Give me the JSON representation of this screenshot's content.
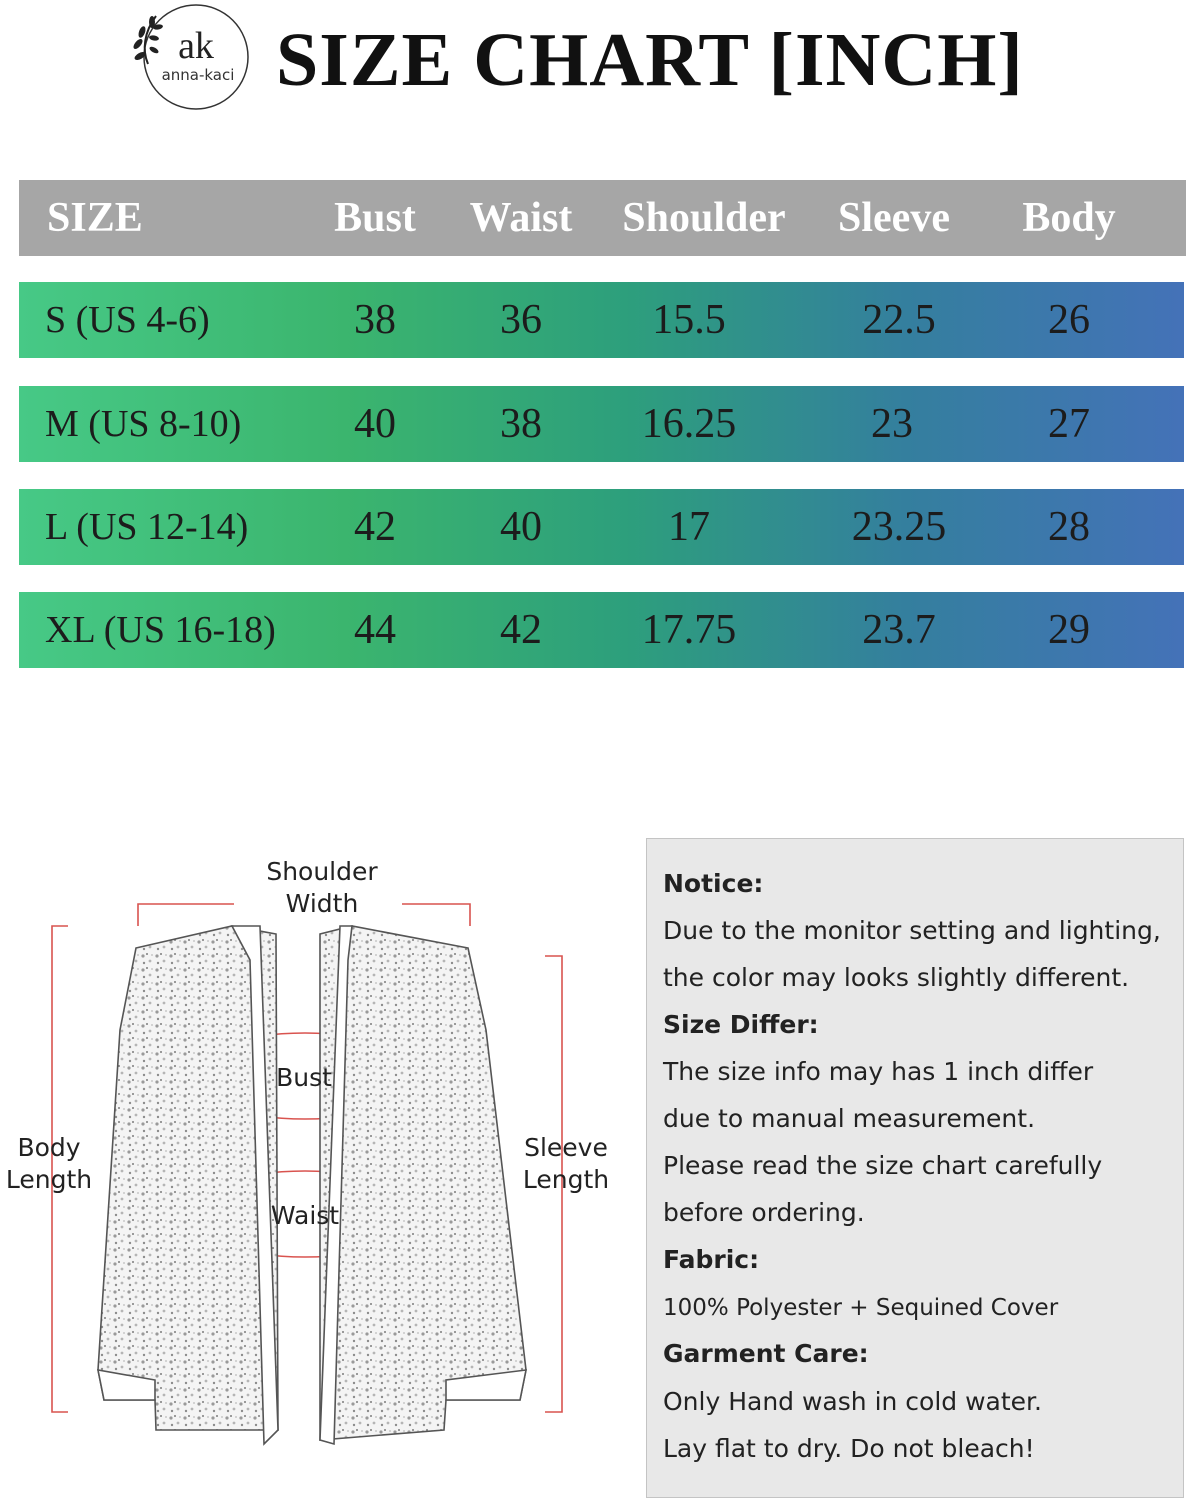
{
  "brand": {
    "monogram": "ak",
    "name": "anna-kaci"
  },
  "title": "SIZE CHART [INCH]",
  "table": {
    "columns": [
      "SIZE",
      "Bust",
      "Waist",
      "Shoulder",
      "Sleeve",
      "Body"
    ],
    "rows": [
      [
        "S (US 4-6)",
        "38",
        "36",
        "15.5",
        "22.5",
        "26"
      ],
      [
        "M (US 8-10)",
        "40",
        "38",
        "16.25",
        "23",
        "27"
      ],
      [
        "L (US 12-14)",
        "42",
        "40",
        "17",
        "23.25",
        "28"
      ],
      [
        "XL (US 16-18)",
        "44",
        "42",
        "17.75",
        "23.7",
        "29"
      ]
    ]
  },
  "diagram": {
    "shoulder_line1": "Shoulder",
    "shoulder_line2": "Width",
    "bust": "Bust",
    "waist": "Waist",
    "body_line1": "Body",
    "body_line2": "Length",
    "sleeve_line1": "Sleeve",
    "sleeve_line2": "Length"
  },
  "notice": {
    "notice_head": "Notice:",
    "notice_l1": "Due to the monitor setting and lighting,",
    "notice_l2": "the color may looks slightly different.",
    "size_head": "Size Differ:",
    "size_l1": "The size info may has 1 inch differ",
    "size_l2": "due to manual measurement.",
    "size_l3": "Please read the size chart carefully",
    "size_l4": "before ordering.",
    "fabric_head": "Fabric:",
    "fabric_l1": "100% Polyester + Sequined Cover",
    "care_head": "Garment Care:",
    "care_l1": "Only Hand wash in cold water.",
    "care_l2": "Lay flat to dry. Do not bleach!"
  },
  "colors": {
    "header_bg": "#a6a6a6",
    "row_gradient_start": "#47c986",
    "row_gradient_end": "#4472b8",
    "measure_line": "#d9534f"
  }
}
